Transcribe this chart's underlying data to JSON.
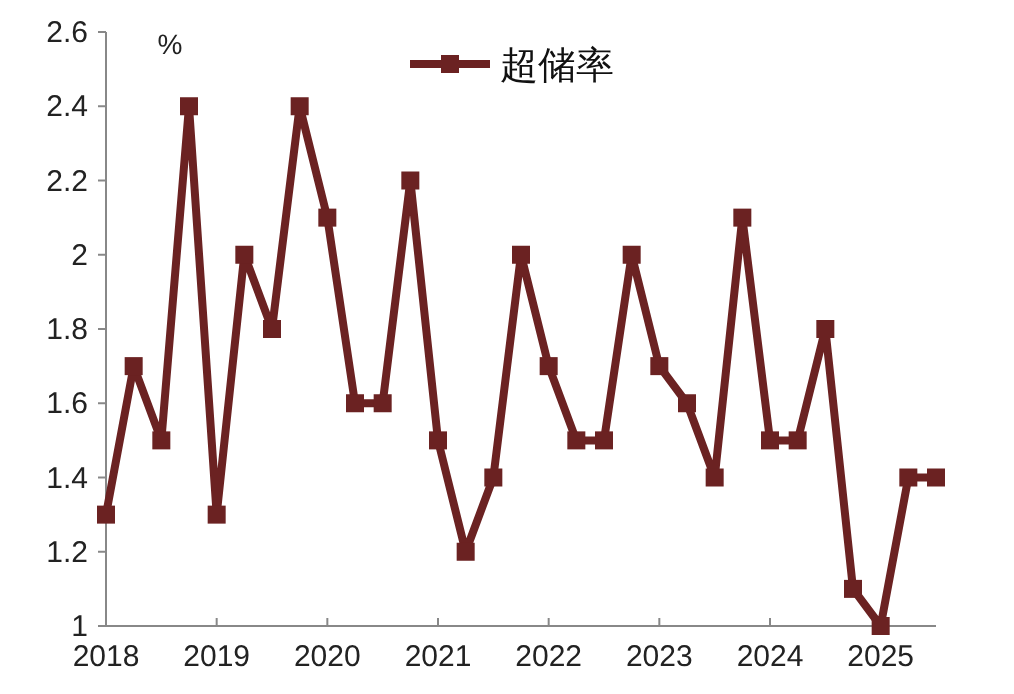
{
  "chart_data": {
    "type": "line",
    "ylabel": "%",
    "x": [
      2018,
      2018.25,
      2018.5,
      2018.75,
      2019,
      2019.25,
      2019.5,
      2019.75,
      2020,
      2020.25,
      2020.5,
      2020.75,
      2021,
      2021.25,
      2021.5,
      2021.75,
      2022,
      2022.25,
      2022.5,
      2022.75,
      2023,
      2023.25,
      2023.5,
      2023.75,
      2024,
      2024.25,
      2024.5,
      2024.75,
      2025,
      2025.25,
      2025.5
    ],
    "series": [
      {
        "name": "超储率",
        "color": "#6b2222",
        "values": [
          1.3,
          1.7,
          1.5,
          2.4,
          1.3,
          2.0,
          1.8,
          2.4,
          2.1,
          1.6,
          1.6,
          2.2,
          1.5,
          1.2,
          1.4,
          2.0,
          1.7,
          1.5,
          1.5,
          2.0,
          1.7,
          1.6,
          1.4,
          2.1,
          1.5,
          1.5,
          1.8,
          1.1,
          1.0,
          1.4,
          1.4
        ]
      }
    ],
    "xlim": [
      2018,
      2025.5
    ],
    "xticks": [
      2018,
      2019,
      2020,
      2021,
      2022,
      2023,
      2024,
      2025
    ],
    "ylim": [
      1,
      2.6
    ],
    "yticks": [
      1,
      1.2,
      1.4,
      1.6,
      1.8,
      2,
      2.2,
      2.4,
      2.6
    ],
    "marker": "square",
    "line_style": "solid",
    "legend": "top",
    "grid": false
  }
}
